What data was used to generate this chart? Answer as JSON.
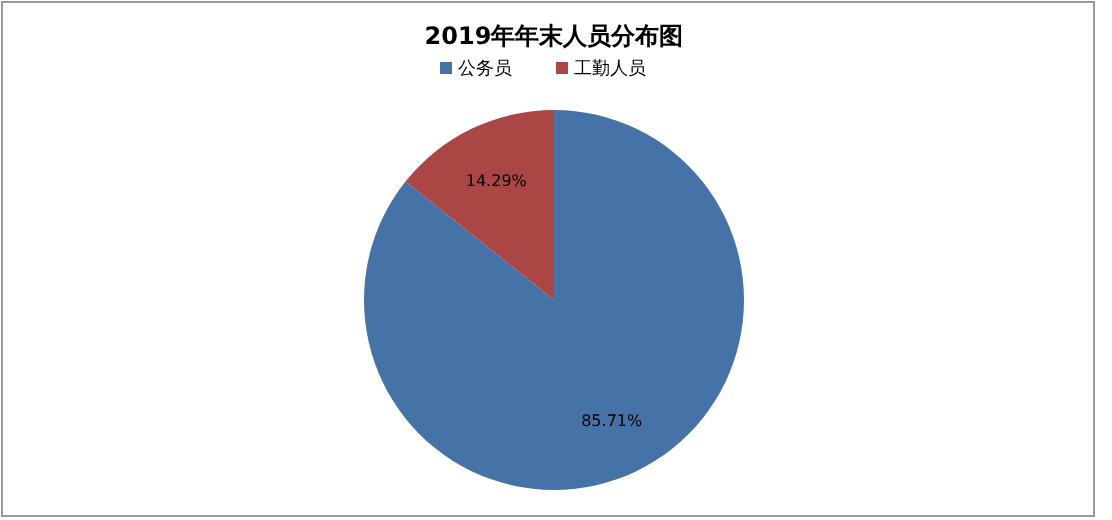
{
  "chart_data": {
    "type": "pie",
    "title": "2019年年末人员分布图",
    "categories": [
      "公务员",
      "工勤人员"
    ],
    "values": [
      85.71,
      14.29
    ],
    "colors": [
      "#4572a7",
      "#aa4643"
    ],
    "data_labels": true,
    "value_labels": [
      "85.71%",
      "14.29%"
    ],
    "legend": "top"
  }
}
